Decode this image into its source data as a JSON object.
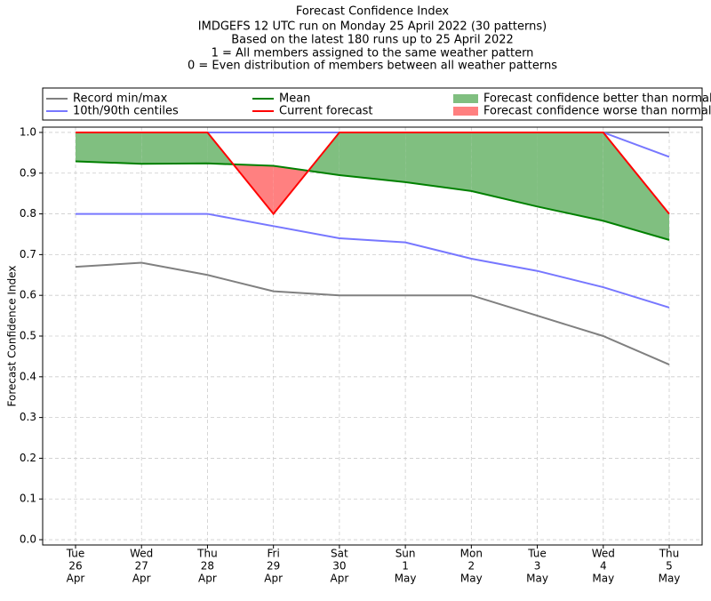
{
  "chart_data": {
    "type": "line",
    "title": "Forecast Confidence Index",
    "subtitle": [
      "IMDGEFS 12 UTC run on Monday 25 April 2022 (30 patterns)",
      "Based on the latest 180 runs up to 25 April 2022",
      "1 = All members assigned to the same weather pattern",
      "0 = Even distribution of members between all weather patterns"
    ],
    "y_label": "Forecast Confidence Index",
    "categories": [
      [
        "Tue",
        "26",
        "Apr"
      ],
      [
        "Wed",
        "27",
        "Apr"
      ],
      [
        "Thu",
        "28",
        "Apr"
      ],
      [
        "Fri",
        "29",
        "Apr"
      ],
      [
        "Sat",
        "30",
        "Apr"
      ],
      [
        "Sun",
        "1",
        "May"
      ],
      [
        "Mon",
        "2",
        "May"
      ],
      [
        "Tue",
        "3",
        "May"
      ],
      [
        "Wed",
        "4",
        "May"
      ],
      [
        "Thu",
        "5",
        "May"
      ]
    ],
    "series": [
      {
        "name": "Record min/max",
        "color": "#808080",
        "lower": [
          0.67,
          0.68,
          0.65,
          0.61,
          0.6,
          0.6,
          0.6,
          0.55,
          0.5,
          0.43
        ],
        "upper": [
          1,
          1,
          1,
          1,
          1,
          1,
          1,
          1,
          1,
          1
        ]
      },
      {
        "name": "10th/90th centiles",
        "color": "#7777ff",
        "lower": [
          0.8,
          0.8,
          0.8,
          0.77,
          0.74,
          0.73,
          0.69,
          0.66,
          0.62,
          0.57
        ],
        "upper": [
          1,
          1,
          1,
          1,
          1,
          1,
          1,
          1,
          1,
          0.94
        ]
      },
      {
        "name": "Mean",
        "color": "#008000",
        "values": [
          0.929,
          0.923,
          0.924,
          0.918,
          0.895,
          0.878,
          0.856,
          0.818,
          0.783,
          0.736
        ]
      },
      {
        "name": "Current forecast",
        "color": "#ff0000",
        "values": [
          1,
          1,
          1,
          0.8,
          1,
          1,
          1,
          1,
          1,
          0.8
        ]
      }
    ],
    "fills": [
      {
        "name": "Forecast confidence better than normal",
        "color": "#80bf80",
        "where": "above",
        "between": [
          3,
          2
        ]
      },
      {
        "name": "Forecast confidence worse than normal",
        "color": "#ff8080",
        "where": "below",
        "between": [
          3,
          2
        ]
      }
    ],
    "ylim": [
      -0.013,
      1.013
    ],
    "yticks": [
      {
        "value": 0,
        "label": "0.0"
      },
      0.1,
      0.2,
      0.3,
      0.4,
      0.5,
      0.6,
      0.7,
      0.8,
      0.9,
      {
        "value": 1,
        "label": "1.0"
      }
    ],
    "grid": true
  }
}
